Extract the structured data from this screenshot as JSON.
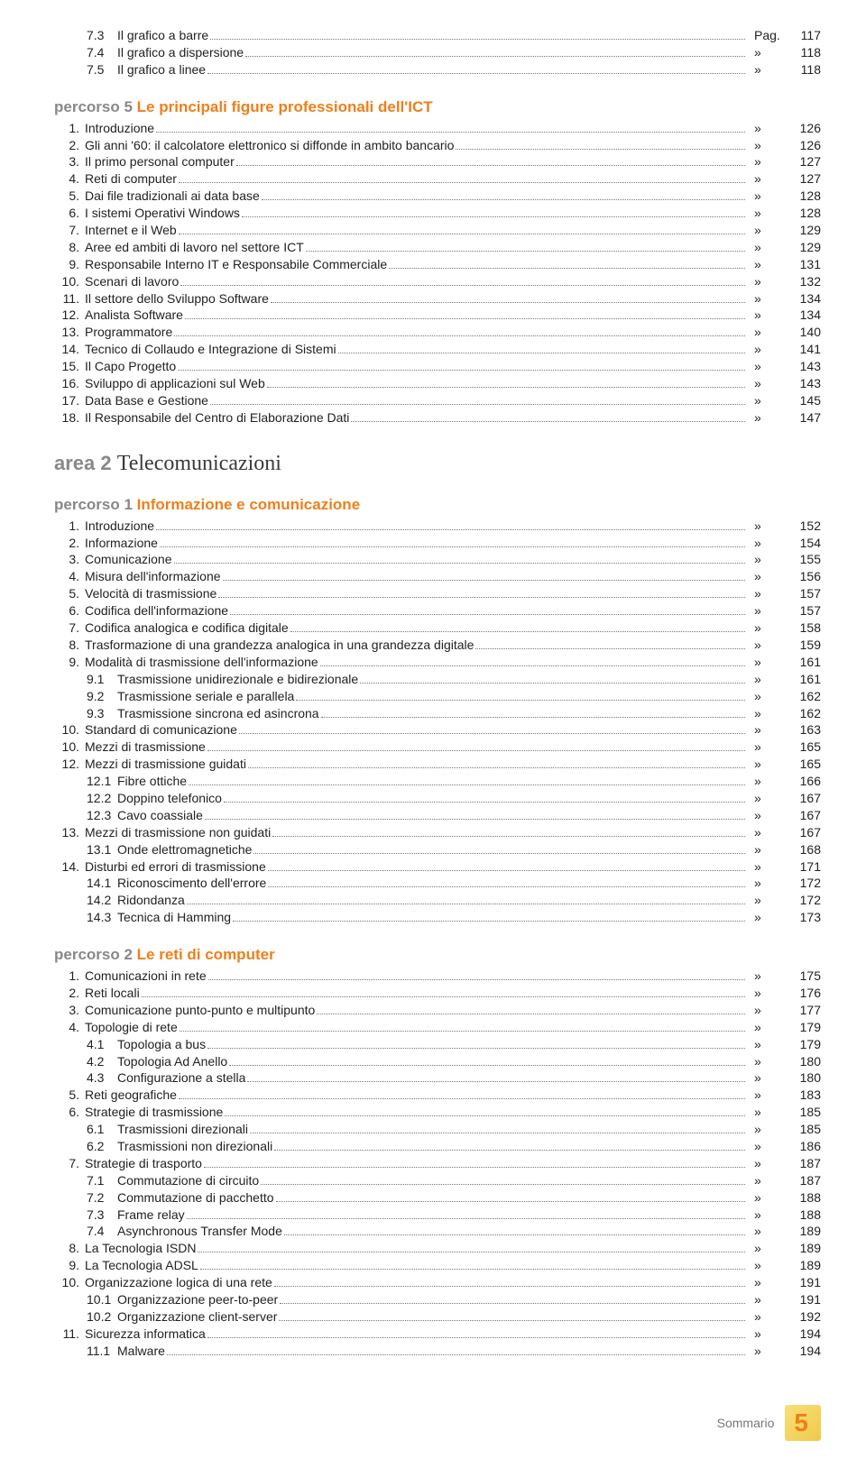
{
  "colors": {
    "accent": "#ef7f1a",
    "muted": "#888888",
    "text": "#222222",
    "dots": "#777777",
    "background": "#ffffff"
  },
  "typography": {
    "body_family": "Arial",
    "body_size_pt": 10,
    "percorso_size_pt": 13,
    "area_size_pt": 18,
    "serif_family": "Georgia"
  },
  "first_mark": "Pag.",
  "ditto": "»",
  "blocks": [
    {
      "type": "rows",
      "rows": [
        {
          "num": "7.3",
          "title": "Il grafico a barre",
          "page": 117,
          "sub": true,
          "first": true
        },
        {
          "num": "7.4",
          "title": "Il grafico a dispersione",
          "page": 118,
          "sub": true
        },
        {
          "num": "7.5",
          "title": "Il grafico a linee",
          "page": 118,
          "sub": true
        }
      ]
    },
    {
      "type": "percorso",
      "label": "percorso 5",
      "title": "Le principali figure professionali dell'ICT",
      "rows": [
        {
          "num": "1.",
          "title": "Introduzione",
          "page": 126
        },
        {
          "num": "2.",
          "title": "Gli anni '60: il calcolatore elettronico si diffonde in ambito bancario",
          "page": 126
        },
        {
          "num": "3.",
          "title": "Il primo personal computer",
          "page": 127
        },
        {
          "num": "4.",
          "title": "Reti di computer",
          "page": 127
        },
        {
          "num": "5.",
          "title": "Dai file tradizionali ai data base",
          "page": 128
        },
        {
          "num": "6.",
          "title": "I sistemi Operativi Windows",
          "page": 128
        },
        {
          "num": "7.",
          "title": "Internet e il Web",
          "page": 129
        },
        {
          "num": "8.",
          "title": "Aree ed ambiti di lavoro nel settore ICT",
          "page": 129
        },
        {
          "num": "9.",
          "title": "Responsabile Interno IT e Responsabile Commerciale",
          "page": 131
        },
        {
          "num": "10.",
          "title": "Scenari di lavoro",
          "page": 132
        },
        {
          "num": "11.",
          "title": "Il settore dello Sviluppo Software",
          "page": 134
        },
        {
          "num": "12.",
          "title": "Analista Software",
          "page": 134
        },
        {
          "num": "13.",
          "title": "Programmatore",
          "page": 140
        },
        {
          "num": "14.",
          "title": "Tecnico di Collaudo e Integrazione di Sistemi",
          "page": 141
        },
        {
          "num": "15.",
          "title": "Il Capo Progetto",
          "page": 143
        },
        {
          "num": "16.",
          "title": "Sviluppo di applicazioni sul Web",
          "page": 143
        },
        {
          "num": "17.",
          "title": "Data Base e Gestione",
          "page": 145
        },
        {
          "num": "18.",
          "title": "Il Responsabile del Centro di Elaborazione Dati",
          "page": 147
        }
      ]
    },
    {
      "type": "area",
      "label": "area 2",
      "title": "Telecomunicazioni"
    },
    {
      "type": "percorso",
      "label": "percorso 1",
      "title": "Informazione e comunicazione",
      "rows": [
        {
          "num": "1.",
          "title": "Introduzione",
          "page": 152
        },
        {
          "num": "2.",
          "title": "Informazione",
          "page": 154
        },
        {
          "num": "3.",
          "title": "Comunicazione",
          "page": 155
        },
        {
          "num": "4.",
          "title": "Misura dell'informazione",
          "page": 156
        },
        {
          "num": "5.",
          "title": "Velocità di trasmissione",
          "page": 157
        },
        {
          "num": "6.",
          "title": "Codifica dell'informazione",
          "page": 157
        },
        {
          "num": "7.",
          "title": "Codifica analogica e codifica digitale",
          "page": 158
        },
        {
          "num": "8.",
          "title": "Trasformazione di una grandezza analogica in una grandezza digitale",
          "page": 159
        },
        {
          "num": "9.",
          "title": "Modalità di trasmissione dell'informazione",
          "page": 161
        },
        {
          "num": "9.1",
          "title": "Trasmissione unidirezionale e bidirezionale",
          "page": 161,
          "sub": true
        },
        {
          "num": "9.2",
          "title": "Trasmissione seriale e parallela",
          "page": 162,
          "sub": true
        },
        {
          "num": "9.3",
          "title": "Trasmissione sincrona ed asincrona",
          "page": 162,
          "sub": true
        },
        {
          "num": "10.",
          "title": "Standard di comunicazione",
          "page": 163
        },
        {
          "num": "10.",
          "title": "Mezzi di trasmissione",
          "page": 165
        },
        {
          "num": "12.",
          "title": "Mezzi di trasmissione guidati",
          "page": 165
        },
        {
          "num": "12.1",
          "title": "Fibre ottiche",
          "page": 166,
          "sub": true
        },
        {
          "num": "12.2",
          "title": "Doppino telefonico",
          "page": 167,
          "sub": true
        },
        {
          "num": "12.3",
          "title": "Cavo coassiale",
          "page": 167,
          "sub": true
        },
        {
          "num": "13.",
          "title": "Mezzi di trasmissione non guidati",
          "page": 167
        },
        {
          "num": "13.1",
          "title": "Onde elettromagnetiche",
          "page": 168,
          "sub": true
        },
        {
          "num": "14.",
          "title": "Disturbi ed errori di trasmissione",
          "page": 171
        },
        {
          "num": "14.1",
          "title": "Riconoscimento dell'errore",
          "page": 172,
          "sub": true
        },
        {
          "num": "14.2",
          "title": "Ridondanza",
          "page": 172,
          "sub": true
        },
        {
          "num": "14.3",
          "title": "Tecnica di Hamming",
          "page": 173,
          "sub": true
        }
      ]
    },
    {
      "type": "percorso",
      "label": "percorso 2",
      "title": "Le reti di computer",
      "rows": [
        {
          "num": "1.",
          "title": "Comunicazioni in rete",
          "page": 175
        },
        {
          "num": "2.",
          "title": "Reti locali",
          "page": 176
        },
        {
          "num": "3.",
          "title": "Comunicazione punto-punto e multipunto",
          "page": 177
        },
        {
          "num": "4.",
          "title": "Topologie di rete",
          "page": 179
        },
        {
          "num": "4.1",
          "title": "Topologia a bus",
          "page": 179,
          "sub": true
        },
        {
          "num": "4.2",
          "title": "Topologia Ad Anello",
          "page": 180,
          "sub": true
        },
        {
          "num": "4.3",
          "title": "Configurazione a stella",
          "page": 180,
          "sub": true
        },
        {
          "num": "5.",
          "title": "Reti geografiche",
          "page": 183
        },
        {
          "num": "6.",
          "title": "Strategie di trasmissione",
          "page": 185
        },
        {
          "num": "6.1",
          "title": "Trasmissioni direzionali",
          "page": 185,
          "sub": true
        },
        {
          "num": "6.2",
          "title": "Trasmissioni non direzionali",
          "page": 186,
          "sub": true
        },
        {
          "num": "7.",
          "title": "Strategie di trasporto",
          "page": 187
        },
        {
          "num": "7.1",
          "title": "Commutazione di circuito",
          "page": 187,
          "sub": true
        },
        {
          "num": "7.2",
          "title": "Commutazione di pacchetto",
          "page": 188,
          "sub": true
        },
        {
          "num": "7.3",
          "title": "Frame relay",
          "page": 188,
          "sub": true
        },
        {
          "num": "7.4",
          "title": "Asynchronous Transfer Mode",
          "page": 189,
          "sub": true
        },
        {
          "num": "8.",
          "title": "La Tecnologia ISDN",
          "page": 189
        },
        {
          "num": "9.",
          "title": "La Tecnologia ADSL",
          "page": 189
        },
        {
          "num": "10.",
          "title": "Organizzazione logica di una rete",
          "page": 191
        },
        {
          "num": "10.1",
          "title": "Organizzazione peer-to-peer",
          "page": 191,
          "sub": true
        },
        {
          "num": "10.2",
          "title": "Organizzazione client-server",
          "page": 192,
          "sub": true
        },
        {
          "num": "11.",
          "title": "Sicurezza informatica",
          "page": 194
        },
        {
          "num": "11.1",
          "title": "Malware",
          "page": 194,
          "sub": true
        }
      ]
    }
  ],
  "footer": {
    "label": "Sommario",
    "page": "5"
  }
}
